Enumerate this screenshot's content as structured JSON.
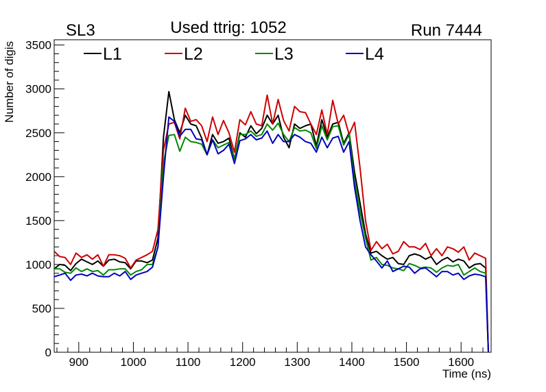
{
  "header": {
    "left_label": "SL3",
    "center_title": "Used ttrig: 1052",
    "right_label": "Run 7444"
  },
  "chart_data": {
    "type": "line",
    "xlabel": "Time (ns)",
    "ylabel": "Number of digis",
    "xlim": [
      855,
      1655
    ],
    "ylim": [
      0,
      3560
    ],
    "x_ticks": [
      900,
      1000,
      1100,
      1200,
      1300,
      1400,
      1500,
      1600
    ],
    "y_ticks": [
      0,
      500,
      1000,
      1500,
      2000,
      2500,
      3000,
      3500
    ],
    "grid": false,
    "legend_position": "top-left",
    "x": [
      855,
      865,
      875,
      885,
      895,
      905,
      915,
      925,
      935,
      945,
      955,
      965,
      975,
      985,
      995,
      1005,
      1015,
      1025,
      1035,
      1045,
      1055,
      1065,
      1075,
      1085,
      1095,
      1105,
      1115,
      1125,
      1135,
      1145,
      1155,
      1165,
      1175,
      1185,
      1195,
      1205,
      1215,
      1225,
      1235,
      1245,
      1255,
      1265,
      1275,
      1285,
      1295,
      1305,
      1315,
      1325,
      1335,
      1345,
      1355,
      1365,
      1375,
      1385,
      1395,
      1405,
      1415,
      1425,
      1435,
      1445,
      1455,
      1465,
      1475,
      1485,
      1495,
      1505,
      1515,
      1525,
      1535,
      1545,
      1555,
      1565,
      1575,
      1585,
      1595,
      1605,
      1615,
      1625,
      1635,
      1645,
      1650
    ],
    "series": [
      {
        "name": "L1",
        "color": "#000000",
        "values": [
          950,
          1000,
          990,
          930,
          1010,
          1060,
          1030,
          1000,
          1040,
          980,
          1050,
          1060,
          1030,
          1020,
          950,
          1040,
          1040,
          1020,
          1050,
          1300,
          2450,
          2970,
          2650,
          2500,
          2700,
          2600,
          2580,
          2440,
          2250,
          2480,
          2380,
          2400,
          2440,
          2200,
          2500,
          2450,
          2580,
          2490,
          2550,
          2700,
          2600,
          2700,
          2450,
          2330,
          2600,
          2550,
          2580,
          2600,
          2350,
          2650,
          2450,
          2600,
          2620,
          2380,
          2500,
          2050,
          1700,
          1350,
          1130,
          1150,
          1100,
          1060,
          1080,
          1010,
          1000,
          1100,
          1120,
          1100,
          1060,
          1090,
          1000,
          1050,
          1080,
          1030,
          1060,
          1040,
          960,
          1000,
          1010,
          960,
          0
        ]
      },
      {
        "name": "L2",
        "color": "#cc0000",
        "values": [
          1150,
          1090,
          1080,
          1000,
          1130,
          1080,
          1110,
          1060,
          1110,
          980,
          1110,
          1110,
          1100,
          1070,
          960,
          1050,
          1080,
          1110,
          1150,
          1400,
          2300,
          2600,
          2620,
          2430,
          2780,
          2630,
          2650,
          2580,
          2400,
          2680,
          2480,
          2640,
          2500,
          2280,
          2650,
          2590,
          2740,
          2600,
          2580,
          2930,
          2600,
          2880,
          2640,
          2520,
          2800,
          2740,
          2730,
          2600,
          2480,
          2760,
          2480,
          2870,
          2600,
          2700,
          2480,
          2620,
          2100,
          1500,
          1160,
          1260,
          1180,
          1230,
          1120,
          1150,
          1260,
          1200,
          1200,
          1170,
          1240,
          1100,
          1180,
          1100,
          1200,
          1180,
          1140,
          1200,
          1050,
          1130,
          1100,
          1070,
          0
        ]
      },
      {
        "name": "L3",
        "color": "#008800",
        "values": [
          950,
          950,
          910,
          900,
          960,
          920,
          950,
          920,
          930,
          880,
          940,
          940,
          950,
          950,
          880,
          920,
          940,
          1000,
          1000,
          1200,
          2150,
          2470,
          2480,
          2290,
          2450,
          2400,
          2390,
          2370,
          2250,
          2420,
          2330,
          2360,
          2390,
          2200,
          2480,
          2480,
          2520,
          2460,
          2480,
          2600,
          2530,
          2610,
          2480,
          2400,
          2560,
          2520,
          2530,
          2500,
          2320,
          2580,
          2420,
          2570,
          2580,
          2360,
          2480,
          1950,
          1600,
          1300,
          1050,
          1080,
          1000,
          990,
          960,
          950,
          930,
          1010,
          990,
          960,
          970,
          960,
          910,
          960,
          990,
          980,
          1000,
          880,
          920,
          960,
          920,
          900,
          0
        ]
      },
      {
        "name": "L4",
        "color": "#0000bb",
        "values": [
          860,
          880,
          900,
          820,
          880,
          890,
          870,
          900,
          870,
          860,
          860,
          900,
          870,
          920,
          830,
          880,
          900,
          920,
          970,
          1200,
          2000,
          2680,
          2630,
          2460,
          2540,
          2540,
          2430,
          2420,
          2250,
          2420,
          2260,
          2300,
          2370,
          2150,
          2410,
          2430,
          2480,
          2420,
          2440,
          2520,
          2380,
          2480,
          2400,
          2400,
          2480,
          2450,
          2400,
          2380,
          2280,
          2450,
          2330,
          2440,
          2460,
          2280,
          2400,
          1880,
          1500,
          1200,
          1110,
          1040,
          960,
          1040,
          920,
          950,
          980,
          970,
          900,
          950,
          960,
          910,
          860,
          920,
          920,
          880,
          900,
          830,
          870,
          890,
          880,
          860,
          0
        ]
      }
    ]
  }
}
